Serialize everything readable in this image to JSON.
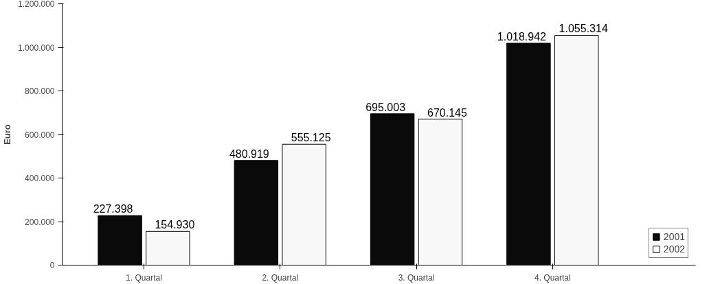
{
  "chart_data": {
    "type": "bar",
    "ylabel": "Euro",
    "categories": [
      "1. Quartal",
      "2. Quartal",
      "3. Quartal",
      "4. Quartal"
    ],
    "series": [
      {
        "name": "2001",
        "color": "#0a0a0a",
        "values": [
          227398,
          480919,
          695003,
          1018942
        ],
        "value_labels": [
          "227.398",
          "480.919",
          "695.003",
          "1.018.942"
        ]
      },
      {
        "name": "2002",
        "color": "#f8f8f8",
        "values": [
          154930,
          555125,
          670145,
          1055314
        ],
        "value_labels": [
          "154.930",
          "555.125",
          "670.145",
          "1.055.314"
        ]
      }
    ],
    "ylim": [
      0,
      1200000
    ],
    "yticks": [
      {
        "value": 0,
        "label": "0"
      },
      {
        "value": 200000,
        "label": "200.000"
      },
      {
        "value": 400000,
        "label": "400.000"
      },
      {
        "value": 600000,
        "label": "600.000"
      },
      {
        "value": 800000,
        "label": "800.000"
      },
      {
        "value": 1000000,
        "label": "1.000.000"
      },
      {
        "value": 1200000,
        "label": "1.200.000"
      }
    ],
    "grid": false,
    "legend": "bottom right"
  }
}
